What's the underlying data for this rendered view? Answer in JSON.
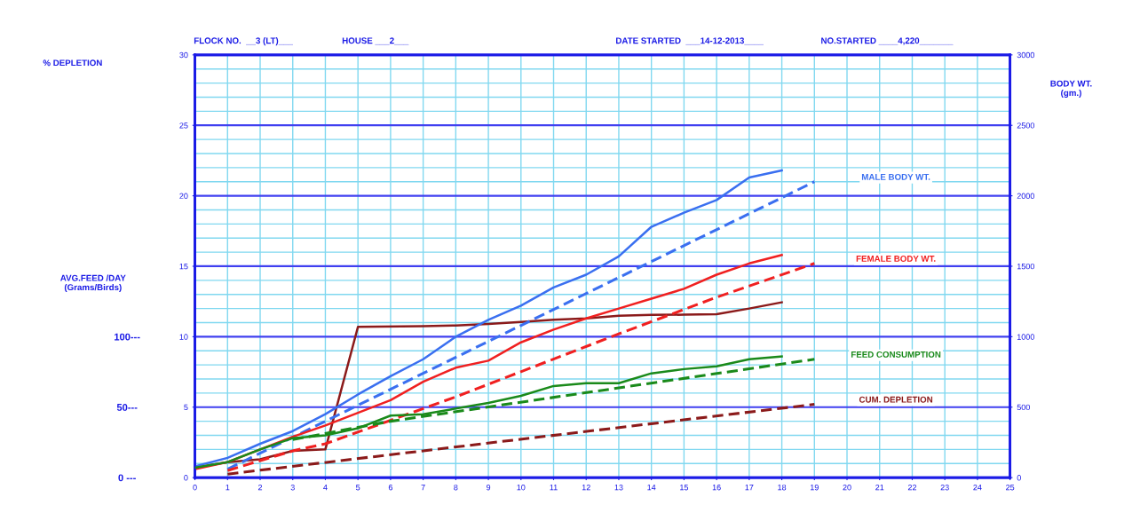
{
  "chart_data": {
    "type": "line",
    "ylabel": "% DEPLETION",
    "y2label": "BODY WT.\n(gm.)",
    "y3label": "AVG.FEED /DAY\n(Grams/Birds)",
    "annotations": [
      "FLOCK NO.  __3 (LT)___",
      "HOUSE ___2___",
      "DATE STARTED  ___14-12-2013____",
      "NO.STARTED ____4,220_______"
    ],
    "xlim": [
      0,
      25
    ],
    "xticks": [
      0,
      1,
      2,
      3,
      4,
      5,
      6,
      7,
      8,
      9,
      10,
      11,
      12,
      13,
      14,
      15,
      16,
      17,
      18,
      19,
      20,
      21,
      22,
      23,
      24,
      25
    ],
    "ylim": [
      0,
      30
    ],
    "yticks": [
      0,
      5,
      10,
      15,
      20,
      25,
      30
    ],
    "y2lim": [
      0,
      3000
    ],
    "y2ticks": [
      0,
      500,
      1000,
      1500,
      2000,
      2500,
      3000
    ],
    "y3lim": [
      0,
      300
    ],
    "y3ticks": [
      {
        "value": 0,
        "label": "0 ---"
      },
      {
        "value": 50,
        "label": "50---"
      },
      {
        "value": 100,
        "label": "100---"
      }
    ],
    "grid": true,
    "legend": false,
    "marker": "none",
    "series": [
      {
        "name": "MALE BODY WT.",
        "color": "#3a6ff0",
        "axis": "y2",
        "line_style": "solid",
        "x": [
          0,
          1,
          2,
          3,
          4,
          5,
          6,
          7,
          8,
          9,
          10,
          11,
          12,
          13,
          14,
          15,
          16,
          17,
          18
        ],
        "values": [
          80,
          140,
          240,
          330,
          450,
          590,
          720,
          840,
          1000,
          1120,
          1220,
          1350,
          1440,
          1570,
          1780,
          1880,
          1970,
          2130,
          2180
        ]
      },
      {
        "color": "#3a6ff0",
        "axis": "y2",
        "line_style": "dashed",
        "x": [
          1,
          19
        ],
        "values": [
          60,
          2100
        ]
      },
      {
        "name": "FEMALE BODY WT.",
        "color": "#f02020",
        "axis": "y2",
        "line_style": "solid",
        "x": [
          0,
          1,
          2,
          3,
          4,
          5,
          6,
          7,
          8,
          9,
          10,
          11,
          12,
          13,
          14,
          15,
          16,
          17,
          18
        ],
        "values": [
          60,
          110,
          200,
          290,
          370,
          460,
          550,
          680,
          780,
          830,
          960,
          1050,
          1130,
          1200,
          1270,
          1340,
          1440,
          1520,
          1580
        ]
      },
      {
        "color": "#f02020",
        "axis": "y2",
        "line_style": "dashed",
        "x": [
          1,
          3,
          4,
          8,
          13,
          16,
          19
        ],
        "values": [
          50,
          190,
          240,
          573,
          1020,
          1280,
          1520
        ]
      },
      {
        "name": "FEED CONSUMPTION",
        "color": "#1a8a1a",
        "axis": "y3",
        "line_style": "solid",
        "x": [
          0,
          1,
          2,
          3,
          4,
          5,
          6,
          7,
          8,
          9,
          10,
          11,
          12,
          13,
          14,
          15,
          16,
          17,
          18
        ],
        "values": [
          7,
          11,
          20,
          28,
          30,
          35,
          44,
          45,
          49,
          53,
          58,
          65,
          67,
          67,
          74,
          77,
          79,
          84,
          86
        ]
      },
      {
        "color": "#1a8a1a",
        "axis": "y3",
        "line_style": "dashed",
        "x": [
          3,
          6,
          19
        ],
        "values": [
          27,
          40,
          84
        ]
      },
      {
        "name": "CUM. DEPLETION",
        "color": "#8b1a1a",
        "line_style": "solid",
        "x": [
          0,
          1,
          2,
          3,
          4,
          5,
          7,
          8,
          9,
          10,
          11,
          12,
          13,
          14,
          15,
          16,
          17,
          18
        ],
        "values": [
          0.7,
          1.1,
          1.3,
          1.9,
          2.0,
          10.7,
          10.75,
          10.8,
          10.9,
          11.05,
          11.2,
          11.3,
          11.48,
          11.55,
          11.56,
          11.6,
          12.0,
          12.44
        ]
      },
      {
        "color": "#8b1a1a",
        "line_style": "dashed",
        "x": [
          1,
          19
        ],
        "values": [
          0.25,
          5.2
        ]
      }
    ]
  }
}
